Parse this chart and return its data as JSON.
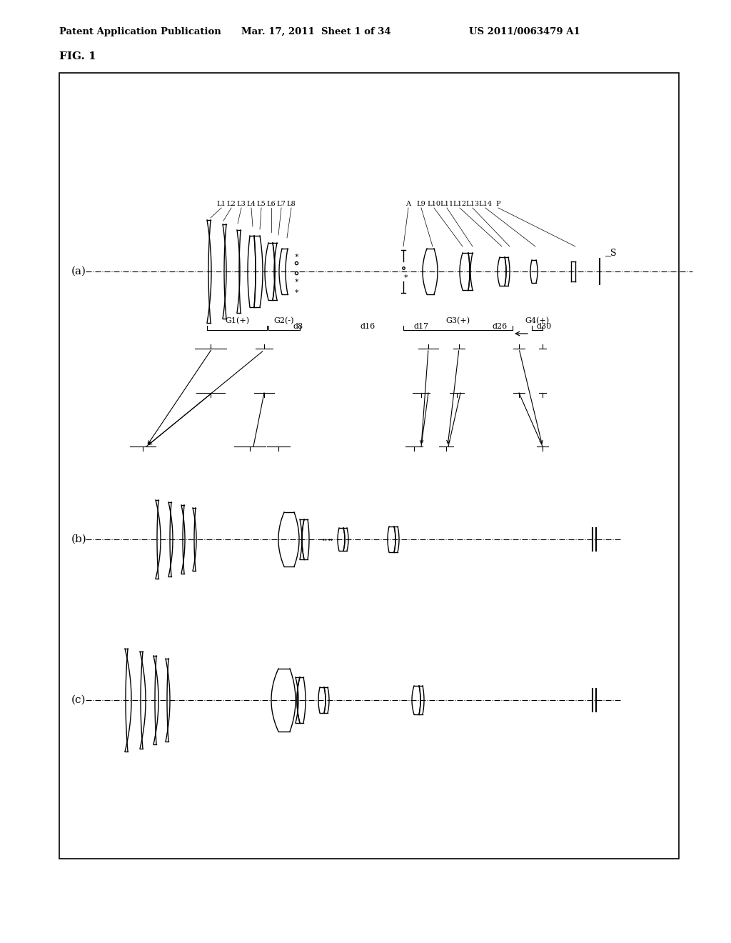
{
  "bg_color": "#ffffff",
  "header_left": "Patent Application Publication",
  "header_mid": "Mar. 17, 2011  Sheet 1 of 34",
  "header_right": "US 2011/0063479 A1",
  "fig_label": "FIG. 1"
}
